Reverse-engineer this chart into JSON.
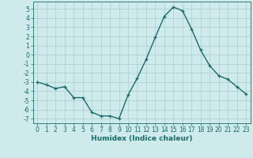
{
  "x": [
    0,
    1,
    2,
    3,
    4,
    5,
    6,
    7,
    8,
    9,
    10,
    11,
    12,
    13,
    14,
    15,
    16,
    17,
    18,
    19,
    20,
    21,
    22,
    23
  ],
  "y": [
    -3.0,
    -3.3,
    -3.7,
    -3.5,
    -4.7,
    -4.7,
    -6.3,
    -6.7,
    -6.7,
    -7.0,
    -4.4,
    -2.6,
    -0.5,
    1.9,
    4.2,
    5.2,
    4.8,
    2.8,
    0.5,
    -1.2,
    -2.3,
    -2.7,
    -3.5,
    -4.3
  ],
  "line_color": "#1a6b6b",
  "marker": "+",
  "bg_color": "#ceeaea",
  "grid_color": "#aacccc",
  "xlabel": "Humidex (Indice chaleur)",
  "xlim": [
    -0.5,
    23.5
  ],
  "ylim": [
    -7.5,
    5.8
  ],
  "yticks": [
    -7,
    -6,
    -5,
    -4,
    -3,
    -2,
    -1,
    0,
    1,
    2,
    3,
    4,
    5
  ],
  "xticks": [
    0,
    1,
    2,
    3,
    4,
    5,
    6,
    7,
    8,
    9,
    10,
    11,
    12,
    13,
    14,
    15,
    16,
    17,
    18,
    19,
    20,
    21,
    22,
    23
  ],
  "tick_fontsize": 5.5,
  "label_fontsize": 6.5,
  "linewidth": 1.0,
  "markersize": 3.5,
  "markeredgewidth": 0.9
}
